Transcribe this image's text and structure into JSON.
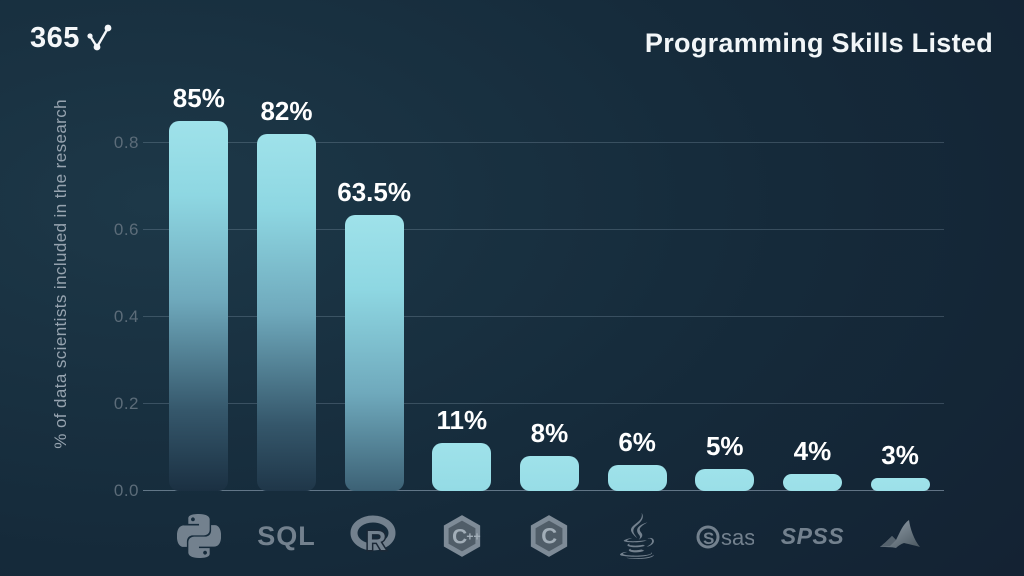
{
  "brand": {
    "logo_text": "365"
  },
  "header": {
    "title": "Programming Skills Listed"
  },
  "chart_data": {
    "type": "bar",
    "title": "Programming Skills Listed",
    "xlabel": "",
    "ylabel": "% of data scientists included in the research",
    "ylim": [
      0,
      0.9
    ],
    "yticks": [
      0.0,
      0.2,
      0.4,
      0.6,
      0.8
    ],
    "grid": true,
    "legend": false,
    "categories": [
      "Python",
      "SQL",
      "R",
      "C++",
      "C",
      "Java",
      "SAS",
      "SPSS",
      "MATLAB"
    ],
    "values": [
      0.85,
      0.82,
      0.635,
      0.11,
      0.08,
      0.06,
      0.05,
      0.04,
      0.03
    ],
    "value_labels": [
      "85%",
      "82%",
      "63.5%",
      "11%",
      "8%",
      "6%",
      "5%",
      "4%",
      "3%"
    ],
    "sql_label": "SQL",
    "spss_label": "SPSS",
    "sas_label": "sas"
  },
  "colors": {
    "bg_light": "#1d3848",
    "bg_mid": "#152a3a",
    "bg_dark": "#131e2f",
    "bar_top": "#9fe2ea",
    "bar_hi": "#8ed7e2",
    "bar_mid": "#6fa9bc",
    "bar_deep": "#35576b",
    "bar_bottom": "#1a2f41",
    "grid": "rgba(148,168,186,0.28)",
    "grid_baseline": "rgba(148,168,186,0.6)",
    "tick": "#5c6c79",
    "axis_label": "#97a4b0",
    "value_label": "#ffffff",
    "icon": "#73818e",
    "icon_dark": "#1b2836",
    "icon_inner": "#505d68",
    "icon_letter": "#a2aeb8"
  }
}
